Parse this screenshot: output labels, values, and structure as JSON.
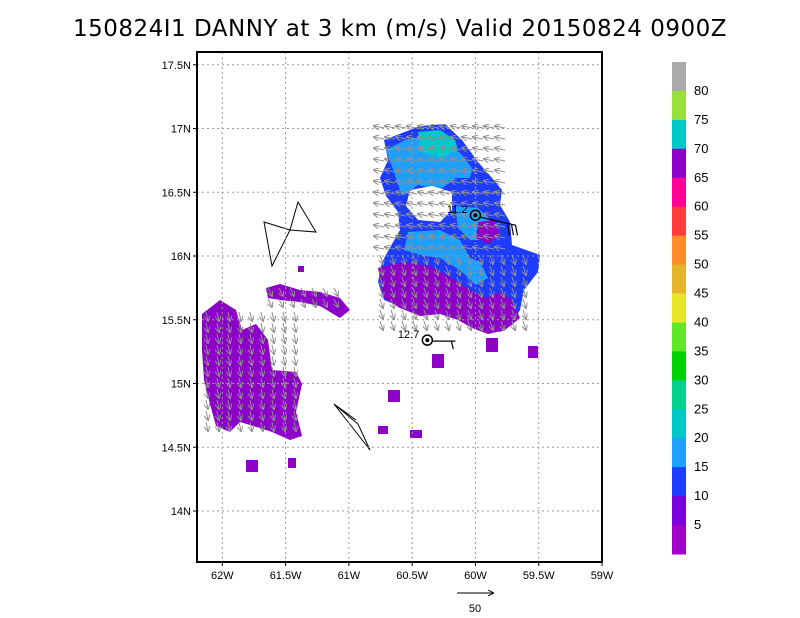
{
  "title": "150824I1 DANNY at 3 km (m/s) Valid 20150824 0900Z",
  "map": {
    "lat_ticks": [
      "17.5N",
      "17N",
      "16.5N",
      "16N",
      "15.5N",
      "15N",
      "14.5N",
      "14N"
    ],
    "lat_values": [
      17.5,
      17.0,
      16.5,
      16.0,
      15.5,
      15.0,
      14.5,
      14.0
    ],
    "lon_ticks": [
      "62W",
      "61.5W",
      "61W",
      "60.5W",
      "60W",
      "59.5W",
      "59W"
    ],
    "lon_values": [
      -62.0,
      -61.5,
      -61.0,
      -60.5,
      -60.0,
      -59.5,
      -59.0
    ],
    "lat_range": [
      13.6,
      17.6
    ],
    "lon_range": [
      -62.2,
      -59.0
    ],
    "gridlines": true
  },
  "storm_markers": [
    {
      "label": "11.2",
      "lat": 16.32,
      "lon": -60.0
    },
    {
      "label": "12.7",
      "lat": 15.34,
      "lon": -60.38
    }
  ],
  "colorbar": {
    "labels": [
      "80",
      "75",
      "70",
      "65",
      "60",
      "55",
      "50",
      "45",
      "40",
      "35",
      "30",
      "25",
      "20",
      "15",
      "10",
      "5"
    ],
    "colors": [
      "#aaaaaa",
      "#99e03c",
      "#00c8c8",
      "#8c00c8",
      "#ff0099",
      "#ff3c3c",
      "#ff8c28",
      "#e6b428",
      "#e6e628",
      "#64e628",
      "#00d200",
      "#00d28c",
      "#00c8c8",
      "#1ea0ff",
      "#1e3cff",
      "#7800dc",
      "#a000c8"
    ]
  },
  "reference_vector": {
    "label": "50"
  }
}
